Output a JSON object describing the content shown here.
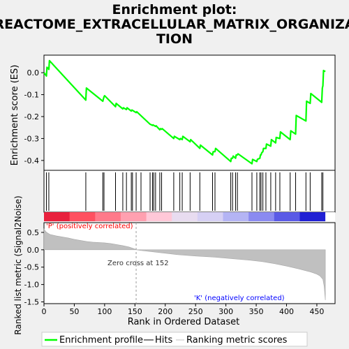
{
  "chart_data": [
    {
      "type": "line",
      "panel": "enrichment",
      "title": "Enrichment plot: REACTOME_EXTRACELLULAR_MATRIX_ORGANIZATION",
      "title_lines": [
        "Enrichment plot:",
        "REACTOME_EXTRACELLULAR_MATRIX_ORGANIZA",
        "TION"
      ],
      "ylabel": "Enrichment score (ES)",
      "xlim": [
        0,
        480
      ],
      "ylim": [
        -0.445,
        0.08
      ],
      "yticks": [
        0.0,
        -0.1,
        -0.2,
        -0.3,
        -0.4
      ],
      "ytick_labels": [
        "0.0",
        "-0.1",
        "-0.2",
        "-0.3",
        "-0.4"
      ],
      "grid": false,
      "series": [
        {
          "name": "Enrichment profile",
          "color": "#00ff00",
          "x": [
            0,
            4,
            5,
            8,
            9,
            69,
            70,
            97,
            98,
            99,
            100,
            118,
            119,
            130,
            131,
            136,
            137,
            144,
            145,
            152,
            153,
            175,
            176,
            179,
            180,
            181,
            184,
            185,
            191,
            192,
            194,
            195,
            214,
            215,
            224,
            225,
            228,
            229,
            241,
            242,
            257,
            258,
            278,
            279,
            282,
            283,
            308,
            309,
            311,
            312,
            316,
            317,
            319,
            320,
            343,
            344,
            351,
            352,
            356,
            357,
            358,
            359,
            361,
            362,
            366,
            367,
            374,
            375,
            382,
            383,
            389,
            390,
            406,
            407,
            415,
            416,
            432,
            433,
            439,
            440,
            458,
            459,
            460,
            461,
            464
          ],
          "y": [
            0.0,
            -0.015,
            0.025,
            0.015,
            0.055,
            -0.125,
            -0.07,
            -0.13,
            -0.12,
            -0.11,
            -0.105,
            -0.155,
            -0.14,
            -0.165,
            -0.16,
            -0.168,
            -0.16,
            -0.175,
            -0.17,
            -0.182,
            -0.178,
            -0.235,
            -0.236,
            -0.24,
            -0.238,
            -0.24,
            -0.245,
            -0.242,
            -0.26,
            -0.255,
            -0.258,
            -0.255,
            -0.3,
            -0.29,
            -0.305,
            -0.3,
            -0.305,
            -0.29,
            -0.315,
            -0.305,
            -0.345,
            -0.33,
            -0.375,
            -0.36,
            -0.36,
            -0.345,
            -0.405,
            -0.39,
            -0.39,
            -0.38,
            -0.39,
            -0.375,
            -0.375,
            -0.37,
            -0.415,
            -0.395,
            -0.405,
            -0.395,
            -0.39,
            -0.375,
            -0.375,
            -0.365,
            -0.36,
            -0.345,
            -0.345,
            -0.325,
            -0.335,
            -0.305,
            -0.32,
            -0.295,
            -0.3,
            -0.27,
            -0.305,
            -0.265,
            -0.28,
            -0.195,
            -0.22,
            -0.13,
            -0.14,
            -0.095,
            -0.135,
            -0.07,
            -0.06,
            0.01,
            0.005
          ]
        }
      ],
      "hits_name": "Hits",
      "hits": [
        4,
        8,
        69,
        97,
        99,
        118,
        130,
        136,
        144,
        146,
        152,
        160,
        175,
        179,
        181,
        184,
        191,
        194,
        214,
        224,
        228,
        241,
        257,
        278,
        282,
        308,
        311,
        316,
        319,
        343,
        351,
        356,
        358,
        361,
        366,
        374,
        382,
        389,
        406,
        415,
        432,
        439,
        458,
        460
      ]
    },
    {
      "type": "area",
      "panel": "ranking",
      "xlabel": "Rank in Ordered Dataset",
      "ylabel": "Ranked list metric (Signal2Noise)",
      "xlim": [
        0,
        480
      ],
      "ylim": [
        -1.55,
        0.78
      ],
      "xticks": [
        0,
        50,
        100,
        150,
        200,
        250,
        300,
        350,
        400,
        450
      ],
      "yticks": [
        0.5,
        0.0,
        -0.5,
        -1.0,
        -1.5
      ],
      "ytick_labels": [
        "0.5",
        "0.0",
        "-0.5",
        "-1.0",
        "-1.5"
      ],
      "series": [
        {
          "name": "Ranking metric scores",
          "color": "#c0c0c0",
          "x": [
            0,
            3,
            6,
            10,
            15,
            20,
            30,
            40,
            50,
            60,
            70,
            80,
            90,
            100,
            110,
            120,
            130,
            140,
            145,
            150,
            152,
            160,
            180,
            200,
            220,
            250,
            280,
            300,
            320,
            340,
            360,
            380,
            400,
            420,
            440,
            450,
            455,
            460,
            462,
            464
          ],
          "y": [
            0.6,
            0.52,
            0.48,
            0.44,
            0.42,
            0.4,
            0.37,
            0.34,
            0.3,
            0.27,
            0.24,
            0.22,
            0.21,
            0.2,
            0.18,
            0.15,
            0.12,
            0.08,
            0.05,
            0.02,
            0.0,
            -0.02,
            -0.06,
            -0.1,
            -0.14,
            -0.18,
            -0.21,
            -0.24,
            -0.27,
            -0.3,
            -0.34,
            -0.4,
            -0.47,
            -0.55,
            -0.64,
            -0.7,
            -0.75,
            -0.85,
            -1.05,
            -1.45
          ]
        }
      ],
      "zero_cross_label": "Zero cross at 152",
      "zero_cross": 152,
      "annotations": [
        {
          "text": "'P' (positively correlated)",
          "color": "#ff0000"
        },
        {
          "text": "'K' (negatively correlated)",
          "color": "#0000ff"
        }
      ],
      "heatmap_colors": [
        "#e8213d",
        "#ff5060",
        "#ff7a8a",
        "#ffa0b0",
        "#ffc8d8",
        "#e8dcf0",
        "#d6d0f4",
        "#b4b4f4",
        "#8a8af0",
        "#5a5ae6",
        "#2020d4"
      ]
    }
  ],
  "legend": {
    "items": [
      {
        "label": "Enrichment profile",
        "color": "#00ff00"
      },
      {
        "label": "Hits",
        "color": "#000000"
      },
      {
        "label": "Ranking metric scores",
        "color": "#c0c0c0"
      }
    ]
  }
}
